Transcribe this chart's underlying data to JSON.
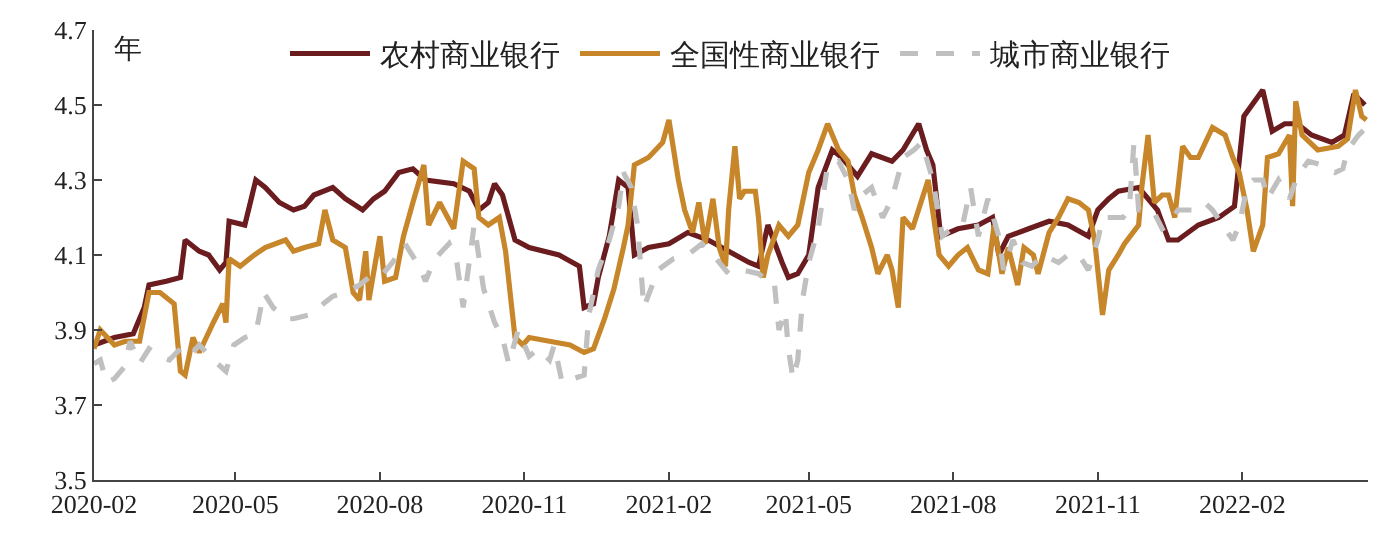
{
  "chart_data": {
    "type": "line",
    "ylabel": "年",
    "legend": "top",
    "xlim": [
      "2020-02-01",
      "2022-04-22"
    ],
    "xticks": [
      "2020-02",
      "2020-05",
      "2020-08",
      "2020-11",
      "2021-02",
      "2021-05",
      "2021-08",
      "2021-11",
      "2022-02"
    ],
    "ylim": [
      3.5,
      4.7
    ],
    "yticks": [
      3.5,
      3.7,
      3.9,
      4.1,
      4.3,
      4.5,
      4.7
    ],
    "series": [
      {
        "name": "农村商业银行",
        "color": "#6b1c1f",
        "line_style": "solid",
        "x": [
          "2020-02-01",
          "2020-02-14",
          "2020-02-26",
          "2020-03-04",
          "2020-03-07",
          "2020-03-18",
          "2020-03-27",
          "2020-03-30",
          "2020-04-08",
          "2020-04-14",
          "2020-04-21",
          "2020-04-25",
          "2020-04-27",
          "2020-05-07",
          "2020-05-14",
          "2020-05-20",
          "2020-05-29",
          "2020-06-07",
          "2020-06-14",
          "2020-06-20",
          "2020-07-02",
          "2020-07-10",
          "2020-07-21",
          "2020-07-28",
          "2020-08-04",
          "2020-08-13",
          "2020-08-22",
          "2020-08-30",
          "2020-09-17",
          "2020-09-27",
          "2020-10-03",
          "2020-10-09",
          "2020-10-13",
          "2020-10-18",
          "2020-10-26",
          "2020-11-04",
          "2020-11-23",
          "2020-12-06",
          "2020-12-09",
          "2020-12-15",
          "2020-12-18",
          "2020-12-25",
          "2020-12-31",
          "2021-01-06",
          "2021-01-10",
          "2021-01-19",
          "2021-02-01",
          "2021-02-13",
          "2021-02-26",
          "2021-03-11",
          "2021-03-24",
          "2021-03-30",
          "2021-04-05",
          "2021-04-14",
          "2021-04-18",
          "2021-04-24",
          "2021-05-01",
          "2021-05-07",
          "2021-05-16",
          "2021-05-22",
          "2021-06-01",
          "2021-06-10",
          "2021-06-23",
          "2021-06-30",
          "2021-07-10",
          "2021-07-15",
          "2021-07-19",
          "2021-07-24",
          "2021-08-04",
          "2021-08-17",
          "2021-08-26",
          "2021-08-30",
          "2021-09-05",
          "2021-09-18",
          "2021-10-01",
          "2021-10-13",
          "2021-10-26",
          "2021-11-01",
          "2021-11-08",
          "2021-11-14",
          "2021-11-27",
          "2021-12-03",
          "2021-12-09",
          "2021-12-16",
          "2021-12-22",
          "2022-01-04",
          "2022-01-17",
          "2022-01-27",
          "2022-02-02",
          "2022-02-14",
          "2022-02-20",
          "2022-02-28",
          "2022-03-08",
          "2022-03-17",
          "2022-03-30",
          "2022-04-07",
          "2022-04-13",
          "2022-04-20"
        ],
        "values": [
          3.86,
          3.88,
          3.89,
          3.96,
          4.02,
          4.03,
          4.04,
          4.14,
          4.11,
          4.1,
          4.06,
          4.08,
          4.19,
          4.18,
          4.3,
          4.28,
          4.24,
          4.22,
          4.23,
          4.26,
          4.28,
          4.25,
          4.22,
          4.25,
          4.27,
          4.32,
          4.33,
          4.3,
          4.29,
          4.27,
          4.22,
          4.24,
          4.29,
          4.26,
          4.14,
          4.12,
          4.1,
          4.07,
          3.96,
          3.97,
          4.04,
          4.15,
          4.3,
          4.28,
          4.1,
          4.12,
          4.13,
          4.16,
          4.14,
          4.11,
          4.08,
          4.07,
          4.18,
          4.08,
          4.04,
          4.05,
          4.1,
          4.28,
          4.38,
          4.36,
          4.31,
          4.37,
          4.35,
          4.38,
          4.45,
          4.38,
          4.34,
          4.15,
          4.17,
          4.18,
          4.2,
          4.1,
          4.15,
          4.17,
          4.19,
          4.18,
          4.15,
          4.22,
          4.25,
          4.27,
          4.28,
          4.25,
          4.22,
          4.14,
          4.14,
          4.18,
          4.2,
          4.23,
          4.47,
          4.54,
          4.43,
          4.45,
          4.45,
          4.42,
          4.4,
          4.42,
          4.53,
          4.5
        ]
      },
      {
        "name": "全国性商业银行",
        "color": "#c8862a",
        "line_style": "solid",
        "x": [
          "2020-02-01",
          "2020-02-05",
          "2020-02-14",
          "2020-02-21",
          "2020-03-01",
          "2020-03-07",
          "2020-03-14",
          "2020-03-23",
          "2020-03-27",
          "2020-03-30",
          "2020-04-04",
          "2020-04-08",
          "2020-04-17",
          "2020-04-23",
          "2020-04-25",
          "2020-04-27",
          "2020-05-04",
          "2020-05-13",
          "2020-05-20",
          "2020-06-02",
          "2020-06-07",
          "2020-06-14",
          "2020-06-23",
          "2020-06-27",
          "2020-07-02",
          "2020-07-10",
          "2020-07-15",
          "2020-07-19",
          "2020-07-23",
          "2020-07-25",
          "2020-08-01",
          "2020-08-04",
          "2020-08-11",
          "2020-08-16",
          "2020-08-22",
          "2020-08-29",
          "2020-09-01",
          "2020-09-08",
          "2020-09-17",
          "2020-09-23",
          "2020-09-30",
          "2020-10-03",
          "2020-10-09",
          "2020-10-16",
          "2020-10-20",
          "2020-10-26",
          "2020-10-31",
          "2020-11-04",
          "2020-11-17",
          "2020-11-30",
          "2020-12-09",
          "2020-12-15",
          "2020-12-22",
          "2020-12-28",
          "2021-01-03",
          "2021-01-06",
          "2021-01-10",
          "2021-01-19",
          "2021-01-28",
          "2021-02-01",
          "2021-02-04",
          "2021-02-07",
          "2021-02-11",
          "2021-02-16",
          "2021-02-20",
          "2021-02-24",
          "2021-03-01",
          "2021-03-05",
          "2021-03-09",
          "2021-03-11",
          "2021-03-15",
          "2021-03-18",
          "2021-03-21",
          "2021-03-28",
          "2021-03-30",
          "2021-04-02",
          "2021-04-05",
          "2021-04-12",
          "2021-04-18",
          "2021-04-24",
          "2021-05-01",
          "2021-05-07",
          "2021-05-13",
          "2021-05-20",
          "2021-05-26",
          "2021-05-30",
          "2021-06-04",
          "2021-06-10",
          "2021-06-14",
          "2021-06-20",
          "2021-06-23",
          "2021-06-27",
          "2021-06-30",
          "2021-07-06",
          "2021-07-16",
          "2021-07-23",
          "2021-07-29",
          "2021-08-04",
          "2021-08-10",
          "2021-08-17",
          "2021-08-23",
          "2021-08-27",
          "2021-09-01",
          "2021-09-05",
          "2021-09-11",
          "2021-09-15",
          "2021-09-21",
          "2021-09-24",
          "2021-10-01",
          "2021-10-07",
          "2021-10-13",
          "2021-10-20",
          "2021-10-26",
          "2021-10-30",
          "2021-11-01",
          "2021-11-04",
          "2021-11-08",
          "2021-11-14",
          "2021-11-18",
          "2021-11-27",
          "2021-11-29",
          "2021-12-03",
          "2021-12-07",
          "2021-12-12",
          "2021-12-16",
          "2021-12-20",
          "2021-12-25",
          "2021-12-30",
          "2022-01-04",
          "2022-01-13",
          "2022-01-21",
          "2022-01-26",
          "2022-01-30",
          "2022-02-04",
          "2022-02-08",
          "2022-02-14",
          "2022-02-17",
          "2022-02-24",
          "2022-03-03",
          "2022-03-05",
          "2022-03-07",
          "2022-03-11",
          "2022-03-21",
          "2022-04-03",
          "2022-04-09",
          "2022-04-14",
          "2022-04-18",
          "2022-04-21"
        ],
        "values": [
          3.85,
          3.9,
          3.86,
          3.87,
          3.87,
          4.0,
          4.0,
          3.97,
          3.79,
          3.78,
          3.88,
          3.84,
          3.92,
          3.97,
          3.92,
          4.09,
          4.07,
          4.1,
          4.12,
          4.14,
          4.11,
          4.12,
          4.13,
          4.22,
          4.14,
          4.12,
          4.0,
          3.98,
          4.11,
          3.98,
          4.15,
          4.03,
          4.04,
          4.15,
          4.24,
          4.34,
          4.18,
          4.24,
          4.17,
          4.35,
          4.33,
          4.2,
          4.18,
          4.2,
          4.11,
          3.88,
          3.86,
          3.88,
          3.87,
          3.86,
          3.84,
          3.85,
          3.93,
          4.01,
          4.12,
          4.18,
          4.34,
          4.36,
          4.4,
          4.46,
          4.38,
          4.3,
          4.22,
          4.16,
          4.24,
          4.13,
          4.25,
          4.12,
          4.07,
          4.22,
          4.39,
          4.25,
          4.27,
          4.27,
          4.2,
          4.04,
          4.1,
          4.18,
          4.15,
          4.18,
          4.32,
          4.38,
          4.45,
          4.38,
          4.35,
          4.26,
          4.2,
          4.12,
          4.05,
          4.1,
          4.06,
          3.96,
          4.2,
          4.17,
          4.3,
          4.1,
          4.07,
          4.1,
          4.12,
          4.06,
          4.05,
          4.18,
          4.05,
          4.12,
          4.02,
          4.12,
          4.1,
          4.05,
          4.16,
          4.2,
          4.25,
          4.24,
          4.22,
          4.14,
          4.06,
          3.94,
          4.06,
          4.1,
          4.13,
          4.18,
          4.28,
          4.42,
          4.24,
          4.26,
          4.26,
          4.2,
          4.39,
          4.36,
          4.36,
          4.44,
          4.42,
          4.36,
          4.32,
          4.22,
          4.11,
          4.18,
          4.36,
          4.37,
          4.42,
          4.23,
          4.51,
          4.42,
          4.38,
          4.39,
          4.41,
          4.54,
          4.47,
          4.46
        ]
      },
      {
        "name": "城市商业银行",
        "color": "#c0c0c0",
        "line_style": "dashed",
        "x": [
          "2020-02-01",
          "2020-02-05",
          "2020-02-09",
          "2020-02-14",
          "2020-02-20",
          "2020-02-24",
          "2020-03-01",
          "2020-03-07",
          "2020-03-14",
          "2020-03-20",
          "2020-03-27",
          "2020-04-02",
          "2020-04-08",
          "2020-04-17",
          "2020-04-25",
          "2020-04-30",
          "2020-05-07",
          "2020-05-14",
          "2020-05-19",
          "2020-05-25",
          "2020-06-02",
          "2020-06-07",
          "2020-06-17",
          "2020-06-26",
          "2020-07-02",
          "2020-07-10",
          "2020-07-19",
          "2020-07-25",
          "2020-08-01",
          "2020-08-09",
          "2020-08-17",
          "2020-08-26",
          "2020-08-30",
          "2020-09-05",
          "2020-09-14",
          "2020-09-19",
          "2020-09-23",
          "2020-09-30",
          "2020-10-06",
          "2020-10-13",
          "2020-10-18",
          "2020-10-22",
          "2020-10-28",
          "2020-11-04",
          "2020-11-10",
          "2020-11-17",
          "2020-11-20",
          "2020-11-25",
          "2020-12-02",
          "2020-12-09",
          "2020-12-12",
          "2020-12-18",
          "2020-12-25",
          "2020-12-31",
          "2021-01-03",
          "2021-01-08",
          "2021-01-12",
          "2021-01-16",
          "2021-01-25",
          "2021-02-04",
          "2021-02-13",
          "2021-02-22",
          "2021-03-01",
          "2021-03-11",
          "2021-03-20",
          "2021-03-30",
          "2021-04-05",
          "2021-04-09",
          "2021-04-12",
          "2021-04-16",
          "2021-04-18",
          "2021-04-21",
          "2021-04-24",
          "2021-04-27",
          "2021-05-01",
          "2021-05-07",
          "2021-05-13",
          "2021-05-20",
          "2021-05-26",
          "2021-05-30",
          "2021-06-04",
          "2021-06-10",
          "2021-06-17",
          "2021-06-23",
          "2021-06-30",
          "2021-07-07",
          "2021-07-12",
          "2021-07-19",
          "2021-07-25",
          "2021-07-31",
          "2021-08-07",
          "2021-08-12",
          "2021-08-17",
          "2021-08-23",
          "2021-08-30",
          "2021-09-02",
          "2021-09-08",
          "2021-09-14",
          "2021-09-20",
          "2021-09-27",
          "2021-10-07",
          "2021-10-13",
          "2021-10-20",
          "2021-10-26",
          "2021-11-01",
          "2021-11-04",
          "2021-11-10",
          "2021-11-17",
          "2021-11-21",
          "2021-11-24",
          "2021-11-27",
          "2021-12-06",
          "2021-12-12",
          "2021-12-16",
          "2021-12-22",
          "2021-12-31",
          "2022-01-08",
          "2022-01-13",
          "2022-01-21",
          "2022-01-26",
          "2022-01-30",
          "2022-02-04",
          "2022-02-08",
          "2022-02-14",
          "2022-02-17",
          "2022-02-24",
          "2022-03-03",
          "2022-03-08",
          "2022-03-15",
          "2022-03-24",
          "2022-04-01",
          "2022-04-06",
          "2022-04-09",
          "2022-04-16",
          "2022-04-21"
        ],
        "values": [
          3.81,
          3.82,
          3.76,
          3.77,
          3.8,
          3.87,
          3.81,
          3.85,
          3.83,
          3.82,
          3.85,
          3.83,
          3.86,
          3.82,
          3.79,
          3.86,
          3.88,
          3.89,
          4.0,
          3.96,
          3.93,
          3.93,
          3.94,
          3.97,
          3.99,
          4.0,
          4.02,
          4.04,
          4.04,
          4.08,
          4.13,
          4.07,
          4.03,
          4.09,
          4.13,
          4.08,
          3.96,
          4.18,
          4.01,
          3.92,
          3.88,
          3.81,
          3.9,
          3.83,
          3.85,
          3.82,
          3.86,
          3.76,
          3.77,
          3.78,
          3.94,
          4.06,
          4.14,
          4.23,
          4.32,
          4.28,
          4.18,
          3.96,
          4.06,
          4.09,
          4.1,
          4.13,
          4.1,
          4.05,
          4.06,
          4.05,
          4.03,
          4.03,
          3.9,
          3.95,
          3.85,
          3.77,
          3.82,
          3.98,
          4.08,
          4.17,
          4.34,
          4.35,
          4.3,
          4.22,
          4.26,
          4.28,
          4.2,
          4.25,
          4.36,
          4.38,
          4.4,
          4.3,
          4.15,
          4.17,
          4.18,
          4.28,
          4.15,
          4.25,
          4.15,
          4.06,
          4.14,
          4.08,
          4.07,
          4.1,
          4.08,
          4.1,
          4.1,
          4.06,
          4.14,
          4.2,
          4.2,
          4.2,
          4.22,
          4.4,
          4.22,
          4.22,
          4.17,
          4.18,
          4.22,
          4.22,
          4.24,
          4.22,
          4.17,
          4.14,
          4.18,
          4.28,
          4.3,
          4.3,
          4.25,
          4.3,
          4.25,
          4.31,
          4.35,
          4.34,
          4.32,
          4.33,
          4.38,
          4.42,
          4.44
        ]
      }
    ]
  }
}
